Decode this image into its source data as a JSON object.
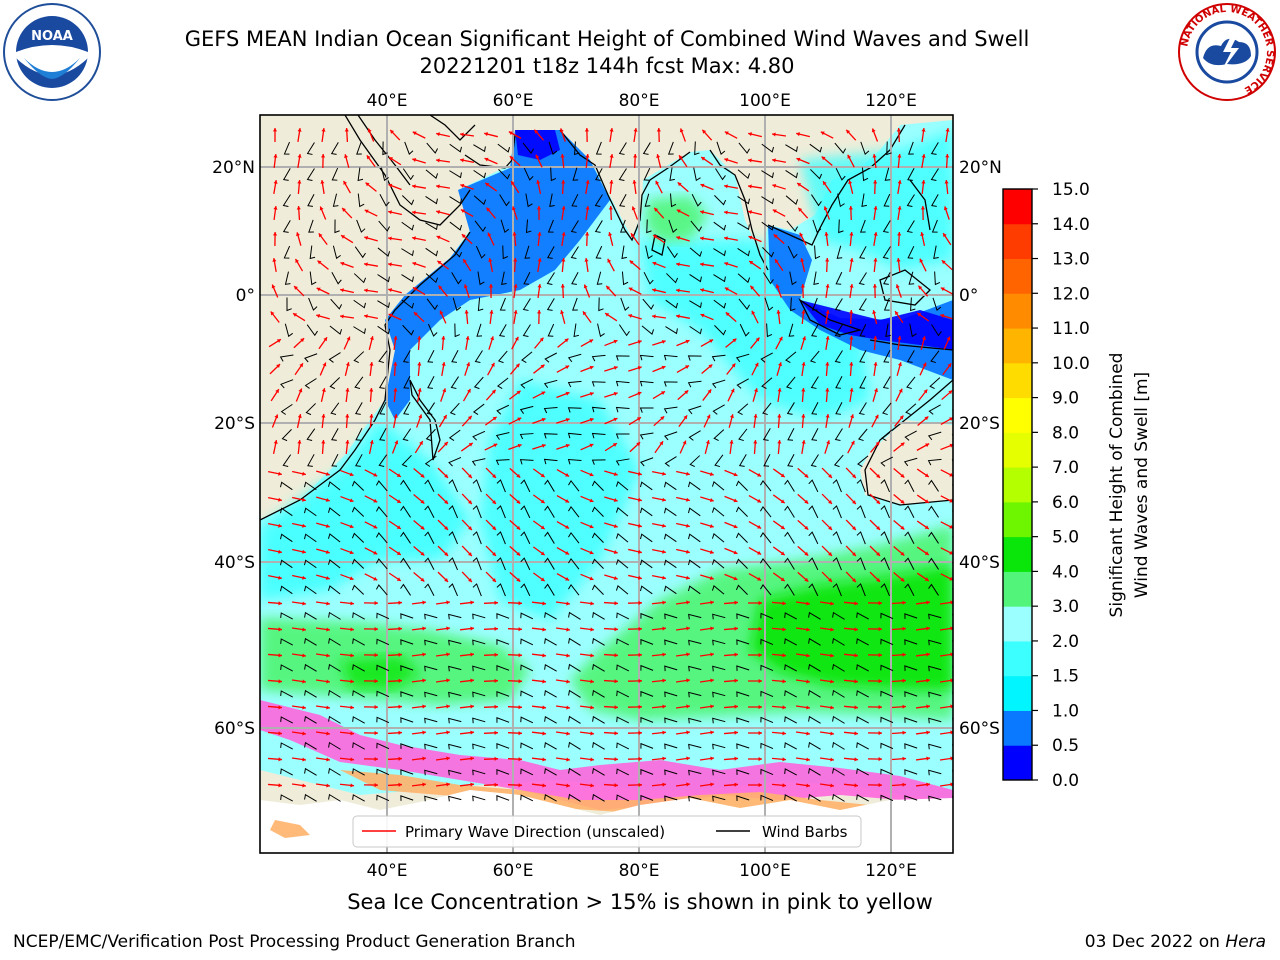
{
  "title": {
    "line1": "GEFS MEAN Indian Ocean Significant Height of Combined Wind Waves and Swell",
    "line2": "20221201 t18z 144h fcst   Max: 4.80"
  },
  "logos": {
    "left": "NOAA",
    "right_ring_text": "NATIONAL WEATHER SERVICE"
  },
  "axes": {
    "lon_labels": [
      "40°E",
      "60°E",
      "80°E",
      "100°E",
      "120°E"
    ],
    "lat_labels_left": [
      "20°N",
      "0°",
      "20°S",
      "40°S",
      "60°S"
    ],
    "lat_labels_right": [
      "20°N",
      "0°",
      "20°S",
      "40°S",
      "60°S"
    ]
  },
  "colorbar": {
    "label_line1": "Significant Height of Combined",
    "label_line2": "Wind Waves and Swell [m]",
    "ticks": [
      "0.0",
      "0.5",
      "1.0",
      "1.5",
      "2.0",
      "3.0",
      "4.0",
      "5.0",
      "6.0",
      "7.0",
      "8.0",
      "9.0",
      "10.0",
      "11.0",
      "12.0",
      "13.0",
      "14.0",
      "15.0"
    ],
    "colors": [
      "#0000ff",
      "#0a78ff",
      "#00f5ff",
      "#3cffff",
      "#9bffff",
      "#52f57a",
      "#0ae60a",
      "#6ef500",
      "#b4ff00",
      "#e6ff00",
      "#ffff00",
      "#ffdc00",
      "#ffb400",
      "#ff8c00",
      "#ff6400",
      "#ff3c00",
      "#ff0000"
    ]
  },
  "legend": {
    "wave_direction": "Primary Wave Direction (unscaled)",
    "wind_barbs": "Wind Barbs"
  },
  "caption": "Sea Ice Concentration > 15% is shown in pink to yellow",
  "footer": {
    "left": "NCEP/EMC/Verification Post Processing Product Generation Branch",
    "date": "03 Dec 2022 on",
    "system": "Hera"
  }
}
